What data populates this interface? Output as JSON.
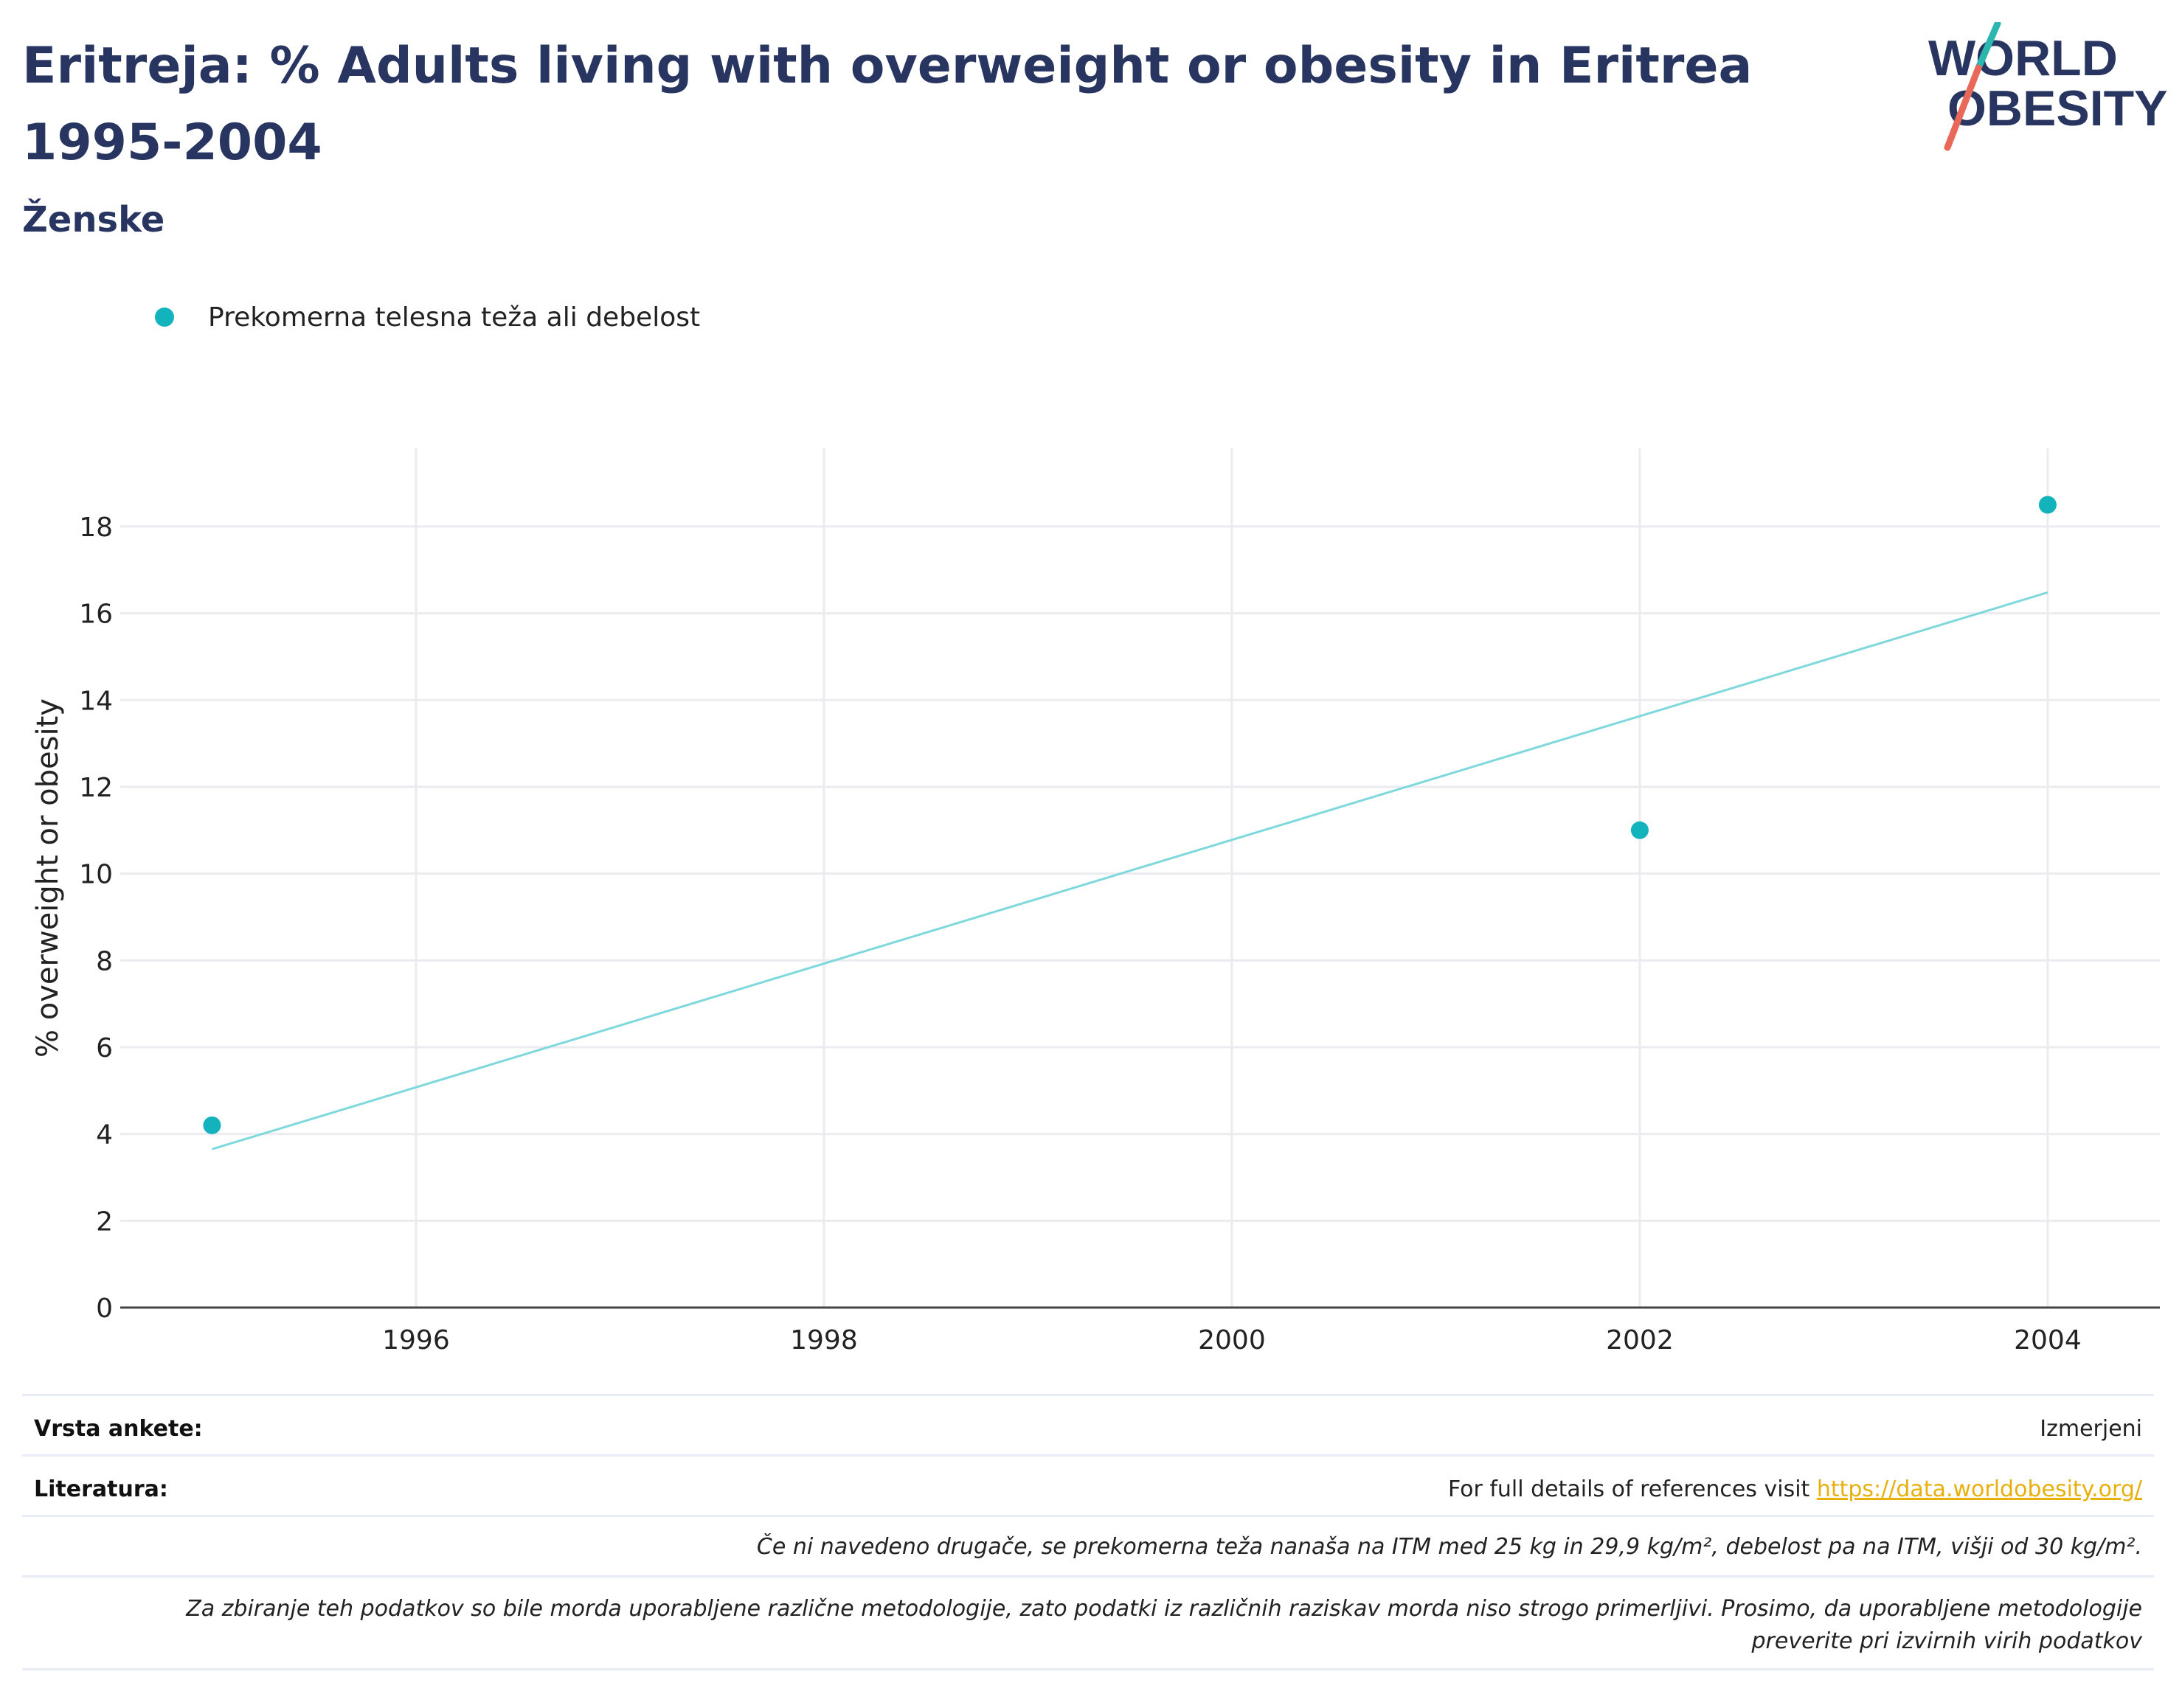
{
  "header": {
    "title": "Eritreja: % Adults living with overweight or obesity in Eritrea 1995-2004",
    "subtitle": "Ženske"
  },
  "logo": {
    "line1": "WORLD",
    "line2": "OBESITY",
    "text_color": "#283561",
    "slash_top_color": "#2ab7b0",
    "slash_bottom_color": "#e8685a"
  },
  "legend": {
    "label": "Prekomerna telesna teža ali debelost",
    "color": "#12b3bd"
  },
  "chart_data": {
    "type": "scatter",
    "x": [
      1995,
      2002,
      2004
    ],
    "series": [
      {
        "name": "Prekomerna telesna teža ali debelost",
        "values": [
          4.2,
          11.0,
          18.5
        ],
        "color": "#12b3bd"
      }
    ],
    "trendline": {
      "x": [
        1995,
        2004
      ],
      "y": [
        3.65,
        16.48
      ],
      "color": "#7ed8dc"
    },
    "xticks": [
      "1996",
      "1998",
      "2000",
      "2002",
      "2004"
    ],
    "xtick_values": [
      1996,
      1998,
      2000,
      2002,
      2004
    ],
    "yticks": [
      "0",
      "2",
      "4",
      "6",
      "8",
      "10",
      "12",
      "14",
      "16",
      "18"
    ],
    "ytick_values": [
      0,
      2,
      4,
      6,
      8,
      10,
      12,
      14,
      16,
      18
    ],
    "xlim": [
      1994.55,
      2004.55
    ],
    "ylim": [
      0,
      19.8
    ],
    "xlabel": "",
    "ylabel": "% overweight or obesity",
    "grid": true
  },
  "footer": {
    "survey_type_label": "Vrsta ankete:",
    "survey_type_value": "Izmerjeni",
    "references_label": "Literatura:",
    "references_text": "For full details of references visit ",
    "references_link": "https://data.worldobesity.org/",
    "definition_note": "Če ni navedeno drugače, se prekomerna teža nanaša na ITM med 25 kg in 29,9 kg/m², debelost pa na ITM, višji od 30 kg/m².",
    "method_note_line1": "Za zbiranje teh podatkov so bile morda uporabljene različne metodologije, zato podatki iz različnih raziskav morda niso strogo primerljivi. Prosimo, da uporabljene metodologije",
    "method_note_line2": "preverite pri izvirnih virih podatkov"
  }
}
